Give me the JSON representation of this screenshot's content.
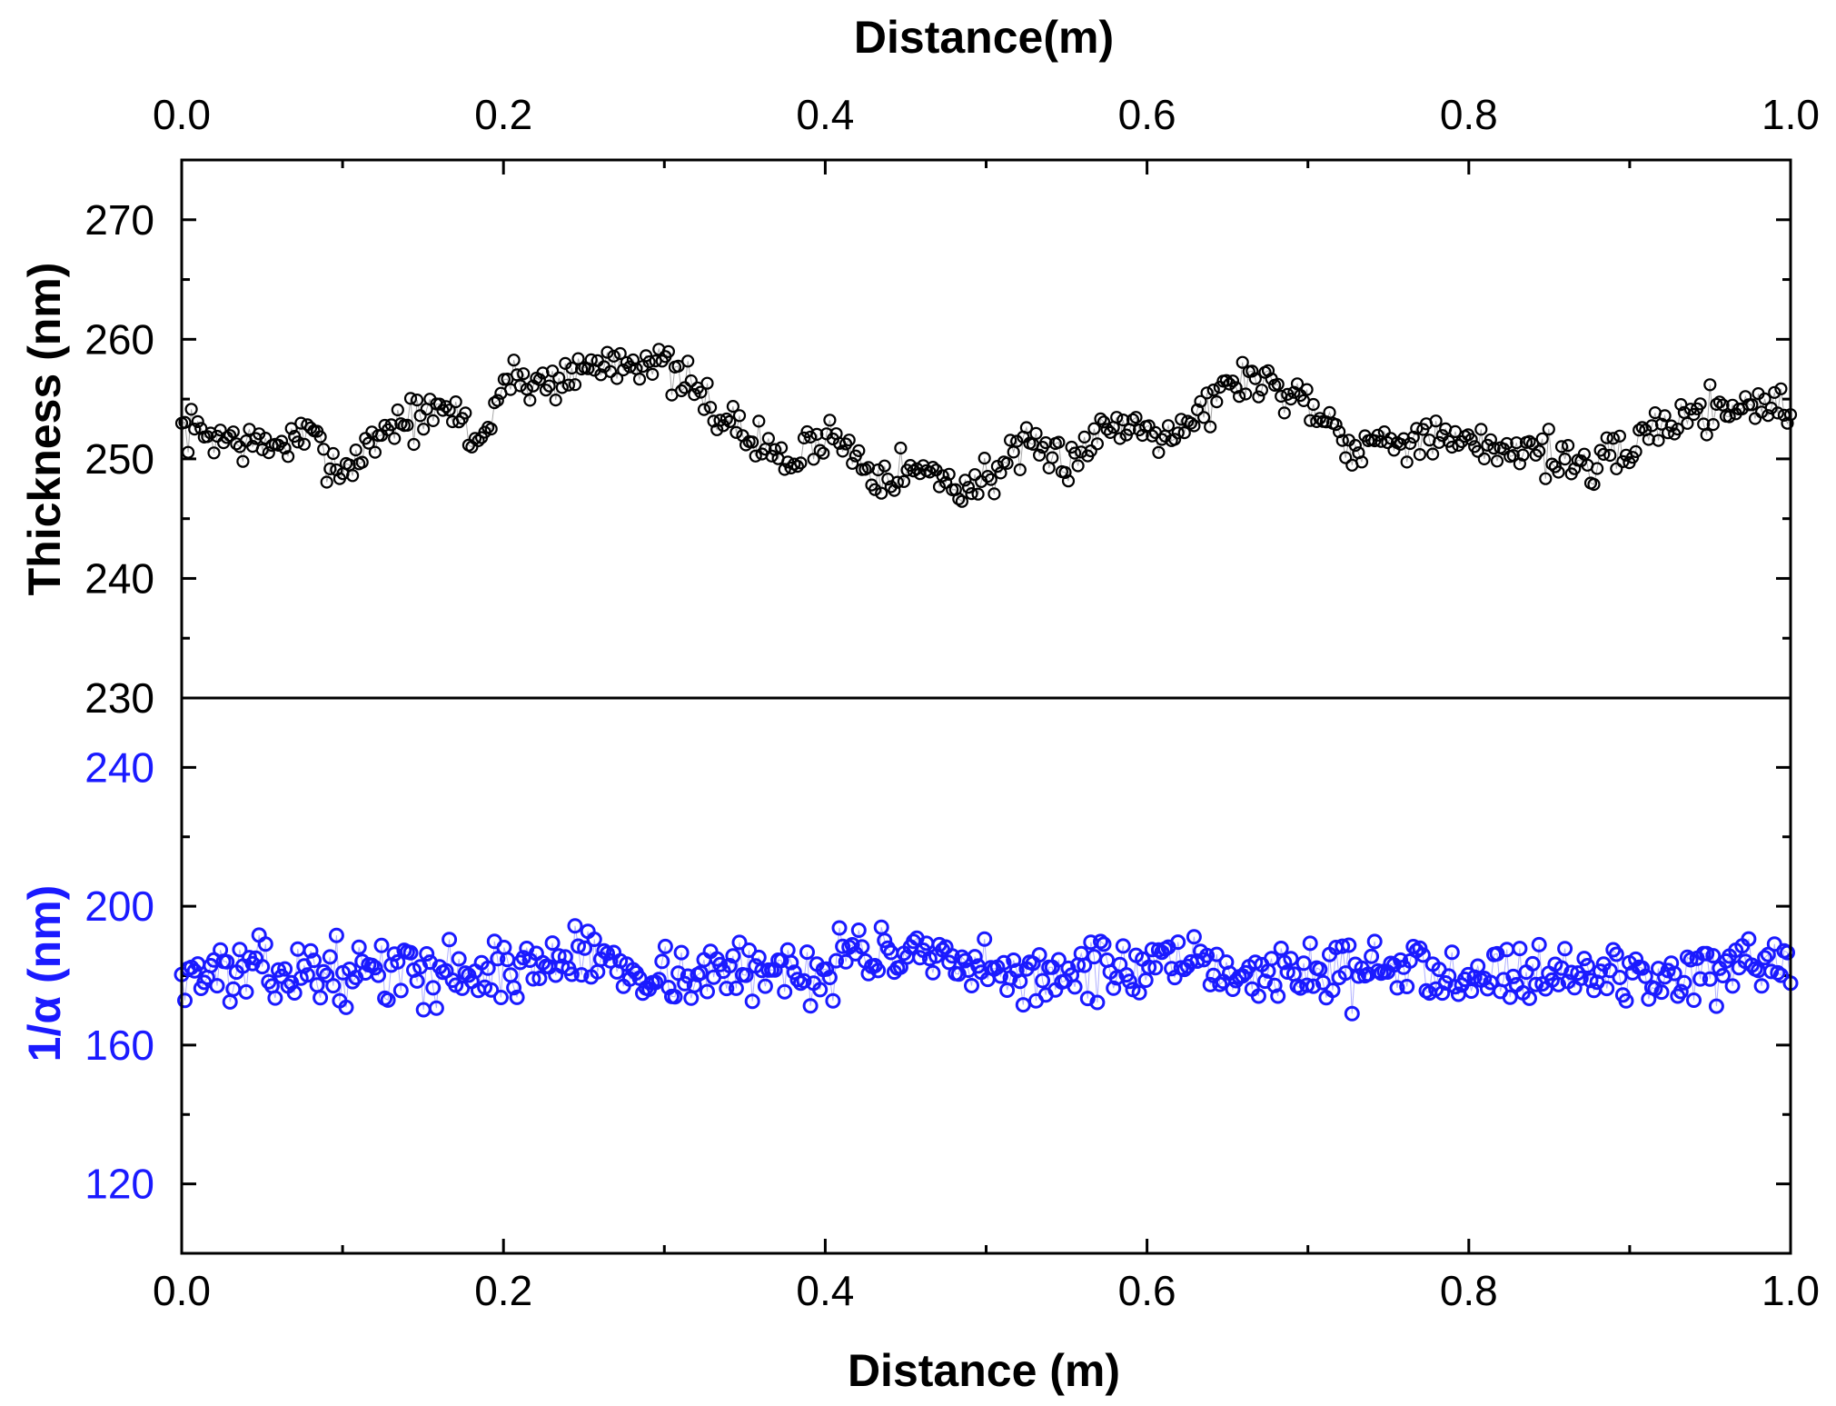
{
  "chart_data": [
    {
      "type": "scatter",
      "panel": "top",
      "marker": "open-circle",
      "color": "#000000",
      "xlabel": "Distance(m)",
      "xaxis_position": "top",
      "ylabel": "Thickness (nm)",
      "xlim": [
        0.0,
        1.0
      ],
      "ylim": [
        230,
        275
      ],
      "xticks": [
        "0.0",
        "0.2",
        "0.4",
        "0.6",
        "0.8",
        "1.0"
      ],
      "yticks": [
        "230",
        "240",
        "250",
        "260",
        "270"
      ],
      "trend_x": [
        0.0,
        0.02,
        0.05,
        0.08,
        0.1,
        0.13,
        0.17,
        0.185,
        0.2,
        0.23,
        0.26,
        0.29,
        0.32,
        0.35,
        0.38,
        0.4,
        0.43,
        0.46,
        0.49,
        0.52,
        0.55,
        0.58,
        0.62,
        0.66,
        0.7,
        0.73,
        0.76,
        0.8,
        0.84,
        0.88,
        0.92,
        0.96,
        1.0
      ],
      "trend_y": [
        252.5,
        252.0,
        251.0,
        251.8,
        249.0,
        253.0,
        254.0,
        251.0,
        256.5,
        256.5,
        258.0,
        258.5,
        255.5,
        252.0,
        249.5,
        252.5,
        249.0,
        249.0,
        247.5,
        250.5,
        250.0,
        253.0,
        252.5,
        257.0,
        255.0,
        251.0,
        252.0,
        251.0,
        251.0,
        249.0,
        253.0,
        254.5,
        254.5
      ],
      "points": 500,
      "noise_amplitude": 1.4,
      "seed": 7
    },
    {
      "type": "scatter",
      "panel": "bottom",
      "marker": "open-circle",
      "color": "#1a1aff",
      "xlabel": "Distance (m)",
      "xaxis_position": "bottom",
      "ylabel": "1/α (nm)",
      "xlim": [
        0.0,
        1.0
      ],
      "ylim": [
        100,
        260
      ],
      "xticks": [
        "0.0",
        "0.2",
        "0.4",
        "0.6",
        "0.8",
        "1.0"
      ],
      "yticks": [
        "120",
        "160",
        "200",
        "240"
      ],
      "trend_x": [
        0.0,
        0.1,
        0.2,
        0.25,
        0.3,
        0.4,
        0.42,
        0.5,
        0.6,
        0.7,
        0.8,
        0.9,
        1.0
      ],
      "trend_y": [
        181,
        181,
        181,
        186,
        180,
        182,
        188,
        180,
        182,
        181,
        182,
        180,
        181
      ],
      "points": 500,
      "noise_amplitude": 6.5,
      "seed": 13
    }
  ]
}
